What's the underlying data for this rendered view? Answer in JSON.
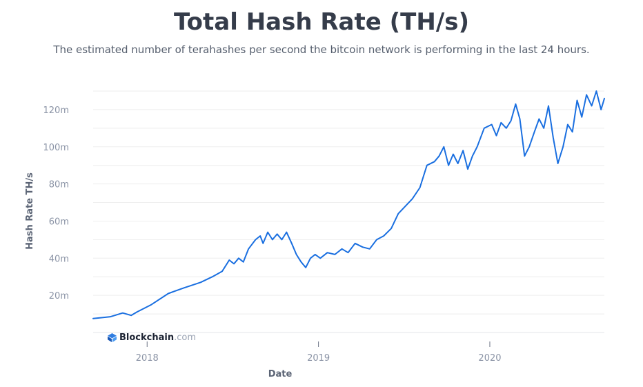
{
  "title": "Total Hash Rate (TH/s)",
  "subtitle": "The estimated number of terahashes per second the bitcoin network is performing in the last 24 hours.",
  "brand": {
    "name": "Blockchain",
    "tld": ".com",
    "icon": "blockchain-logo-icon"
  },
  "colors": {
    "line": "#1a6fe0",
    "grid": "#eeeeee",
    "tick": "#8a93a5"
  },
  "chart_data": {
    "type": "line",
    "xlabel": "Date",
    "ylabel": "Hash Rate TH/s",
    "x_ticks": [
      "2018",
      "2019",
      "2020"
    ],
    "y_ticks": [
      "20m",
      "40m",
      "60m",
      "80m",
      "100m",
      "120m"
    ],
    "ylim": [
      0,
      130000000
    ],
    "xlim": [
      "2017-09-08",
      "2020-09-01"
    ],
    "grid": true,
    "series": [
      {
        "values": [
          [
            "2017-09-08",
            7500000
          ],
          [
            "2017-10-15",
            8500000
          ],
          [
            "2017-11-10",
            10500000
          ],
          [
            "2017-11-28",
            9200000
          ],
          [
            "2017-12-10",
            11000000
          ],
          [
            "2018-01-10",
            15000000
          ],
          [
            "2018-02-15",
            21000000
          ],
          [
            "2018-03-20",
            24000000
          ],
          [
            "2018-04-25",
            27000000
          ],
          [
            "2018-05-20",
            30000000
          ],
          [
            "2018-06-10",
            33000000
          ],
          [
            "2018-06-25",
            39000000
          ],
          [
            "2018-07-05",
            37000000
          ],
          [
            "2018-07-15",
            40000000
          ],
          [
            "2018-07-25",
            38000000
          ],
          [
            "2018-08-05",
            45000000
          ],
          [
            "2018-08-20",
            50000000
          ],
          [
            "2018-08-30",
            52000000
          ],
          [
            "2018-09-05",
            48000000
          ],
          [
            "2018-09-15",
            54000000
          ],
          [
            "2018-09-25",
            50000000
          ],
          [
            "2018-10-05",
            53000000
          ],
          [
            "2018-10-15",
            50000000
          ],
          [
            "2018-10-25",
            54000000
          ],
          [
            "2018-11-05",
            48000000
          ],
          [
            "2018-11-15",
            42000000
          ],
          [
            "2018-11-25",
            38000000
          ],
          [
            "2018-12-05",
            35000000
          ],
          [
            "2018-12-15",
            40000000
          ],
          [
            "2018-12-25",
            42000000
          ],
          [
            "2019-01-05",
            40000000
          ],
          [
            "2019-01-20",
            43000000
          ],
          [
            "2019-02-05",
            42000000
          ],
          [
            "2019-02-20",
            45000000
          ],
          [
            "2019-03-05",
            43000000
          ],
          [
            "2019-03-20",
            48000000
          ],
          [
            "2019-04-05",
            46000000
          ],
          [
            "2019-04-20",
            45000000
          ],
          [
            "2019-05-05",
            50000000
          ],
          [
            "2019-05-20",
            52000000
          ],
          [
            "2019-06-05",
            56000000
          ],
          [
            "2019-06-20",
            64000000
          ],
          [
            "2019-07-05",
            68000000
          ],
          [
            "2019-07-20",
            72000000
          ],
          [
            "2019-08-05",
            78000000
          ],
          [
            "2019-08-20",
            90000000
          ],
          [
            "2019-09-05",
            92000000
          ],
          [
            "2019-09-15",
            95000000
          ],
          [
            "2019-09-25",
            100000000
          ],
          [
            "2019-10-05",
            90000000
          ],
          [
            "2019-10-15",
            96000000
          ],
          [
            "2019-10-25",
            91000000
          ],
          [
            "2019-11-05",
            98000000
          ],
          [
            "2019-11-15",
            88000000
          ],
          [
            "2019-11-25",
            95000000
          ],
          [
            "2019-12-05",
            100000000
          ],
          [
            "2019-12-20",
            110000000
          ],
          [
            "2020-01-05",
            112000000
          ],
          [
            "2020-01-15",
            106000000
          ],
          [
            "2020-01-25",
            113000000
          ],
          [
            "2020-02-05",
            110000000
          ],
          [
            "2020-02-15",
            114000000
          ],
          [
            "2020-02-25",
            123000000
          ],
          [
            "2020-03-05",
            115000000
          ],
          [
            "2020-03-15",
            95000000
          ],
          [
            "2020-03-25",
            100000000
          ],
          [
            "2020-04-05",
            108000000
          ],
          [
            "2020-04-15",
            115000000
          ],
          [
            "2020-04-25",
            110000000
          ],
          [
            "2020-05-05",
            122000000
          ],
          [
            "2020-05-15",
            105000000
          ],
          [
            "2020-05-25",
            91000000
          ],
          [
            "2020-06-05",
            100000000
          ],
          [
            "2020-06-15",
            112000000
          ],
          [
            "2020-06-25",
            108000000
          ],
          [
            "2020-07-05",
            125000000
          ],
          [
            "2020-07-15",
            116000000
          ],
          [
            "2020-07-25",
            128000000
          ],
          [
            "2020-08-05",
            122000000
          ],
          [
            "2020-08-15",
            130000000
          ],
          [
            "2020-08-25",
            120000000
          ],
          [
            "2020-09-01",
            126000000
          ]
        ]
      }
    ]
  }
}
